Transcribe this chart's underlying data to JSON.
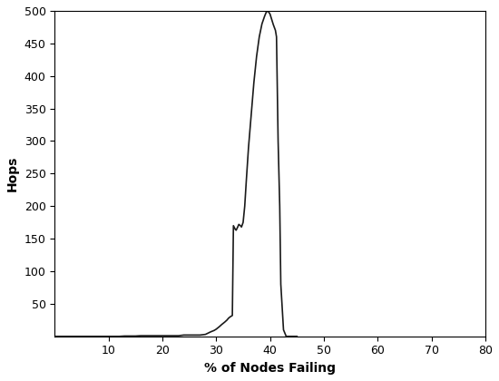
{
  "xlabel": "% of Nodes Failing",
  "ylabel": "Hops",
  "xlim": [
    0,
    80
  ],
  "ylim": [
    0,
    500
  ],
  "xticks": [
    10,
    20,
    30,
    40,
    50,
    60,
    70,
    80
  ],
  "yticks": [
    50,
    100,
    150,
    200,
    250,
    300,
    350,
    400,
    450,
    500
  ],
  "line_color": "#1a1a1a",
  "line_width": 1.2,
  "background_color": "#ffffff",
  "x": [
    0,
    1,
    2,
    3,
    4,
    5,
    6,
    7,
    8,
    9,
    10,
    11,
    12,
    13,
    14,
    15,
    16,
    17,
    18,
    19,
    20,
    21,
    22,
    23,
    24,
    25,
    26,
    27,
    28,
    28.5,
    29,
    29.3,
    29.6,
    30,
    30.3,
    30.6,
    31,
    31.3,
    31.6,
    32,
    32.3,
    32.6,
    33,
    33.2,
    33.5,
    33.7,
    34,
    34.2,
    34.5,
    34.7,
    35,
    35.3,
    35.6,
    36,
    36.5,
    37,
    37.5,
    38,
    38.5,
    39,
    39.3,
    39.6,
    40,
    40.3,
    40.6,
    41,
    41.2,
    41.5,
    41.8,
    42,
    42.5,
    43,
    43.5,
    44,
    44.5,
    45
  ],
  "y": [
    0,
    0,
    0,
    0,
    0,
    0,
    0,
    0,
    0,
    0,
    0,
    0,
    0,
    0.5,
    0.5,
    0.5,
    1,
    1,
    1,
    1,
    1,
    1,
    1,
    1,
    2,
    2,
    2,
    2,
    3,
    5,
    7,
    8,
    9,
    11,
    13,
    15,
    18,
    20,
    22,
    25,
    28,
    30,
    32,
    170,
    165,
    163,
    168,
    172,
    170,
    168,
    175,
    200,
    240,
    290,
    340,
    390,
    430,
    460,
    480,
    492,
    498,
    500,
    495,
    487,
    479,
    470,
    460,
    300,
    200,
    80,
    10,
    0,
    0,
    0,
    0,
    0
  ]
}
